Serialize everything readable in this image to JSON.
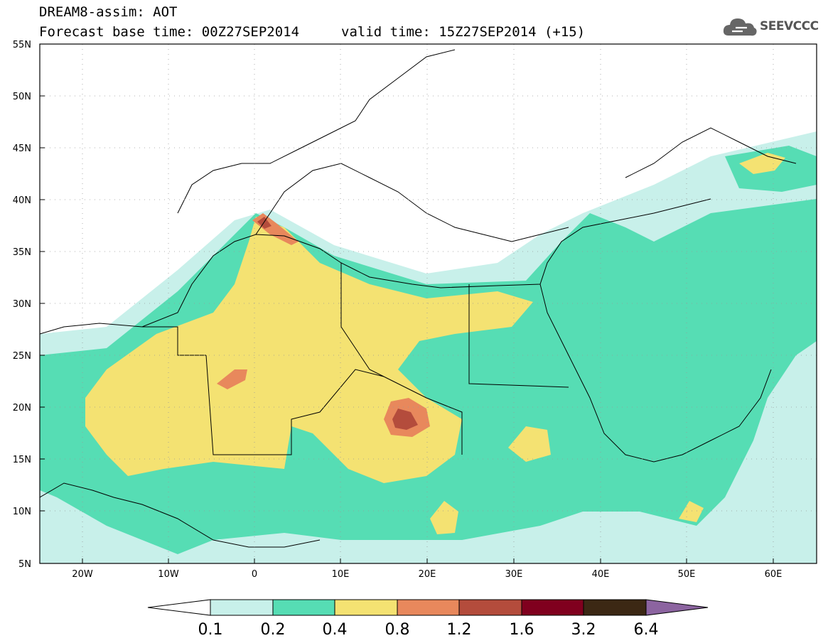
{
  "header": {
    "title": "DREAM8-assim: AOT",
    "base_time": "Forecast base time: 00Z27SEP2014",
    "valid_time": "valid time: 15Z27SEP2014 (+15)"
  },
  "logo": {
    "text": "SEEVCCC",
    "icon": "cloud-icon"
  },
  "map": {
    "region": "North Africa, Europe, Middle East",
    "lon_labels": [
      "20W",
      "10W",
      "0",
      "10E",
      "20E",
      "30E",
      "40E",
      "50E",
      "60E"
    ],
    "lat_labels": [
      "55N",
      "50N",
      "45N",
      "40N",
      "35N",
      "30N",
      "25N",
      "20N",
      "15N",
      "10N",
      "5N"
    ],
    "grid": "dotted"
  },
  "colorbar": {
    "labels": [
      "0.1",
      "0.2",
      "0.4",
      "0.8",
      "1.2",
      "1.6",
      "3.2",
      "6.4"
    ],
    "colors": [
      "#ffffff",
      "#c8f0ea",
      "#56ddb4",
      "#f4e272",
      "#e8885c",
      "#b44c3c",
      "#80001e",
      "#3c2814",
      "#8c64a0"
    ]
  }
}
